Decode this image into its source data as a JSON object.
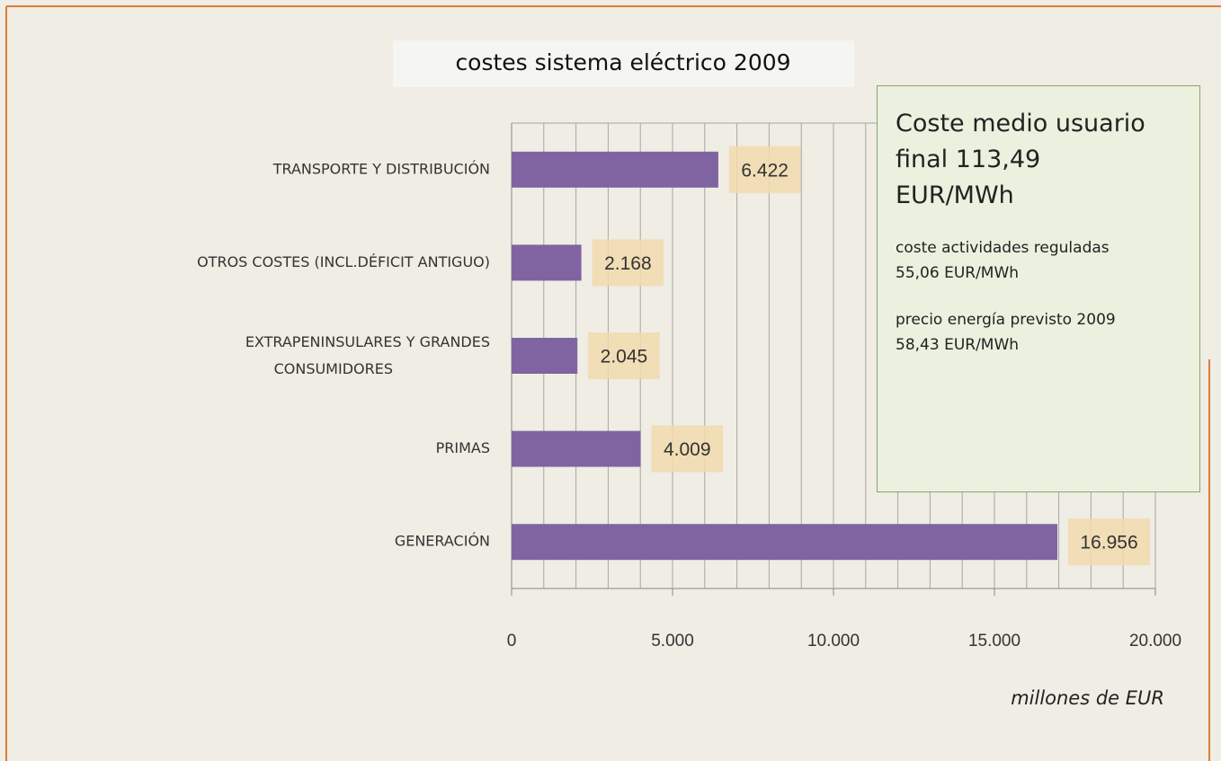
{
  "chart_data": {
    "type": "bar",
    "orientation": "horizontal",
    "title": "costes sistema eléctrico 2009",
    "x_label": "millones de EUR",
    "categories": [
      "TRANSPORTE Y DISTRIBUCIÓN",
      "OTROS COSTES (INCL.DÉFICIT  ANTIGUO)",
      "EXTRAPENINSULARES  Y GRANDES CONSUMIDORES",
      "PRIMAS",
      "GENERACIÓN"
    ],
    "values": [
      6422,
      2168,
      2045,
      4009,
      16956
    ],
    "value_labels": [
      "6.422",
      "2.168",
      "2.045",
      "4.009",
      "16.956"
    ],
    "color": "#8064a2",
    "xlim": [
      0,
      20000
    ],
    "xticks": [
      0,
      {
        "value": 5000,
        "label": "5.000"
      },
      {
        "value": 10000,
        "label": "10.000"
      },
      {
        "value": 15000,
        "label": "15.000"
      },
      {
        "value": 20000,
        "label": "20.000"
      }
    ],
    "minor_grid": [
      1000,
      2000,
      3000,
      4000,
      6000,
      7000,
      8000,
      9000,
      11000,
      12000,
      13000,
      14000,
      16000,
      17000,
      18000,
      19000
    ],
    "grid": true,
    "annotation": {
      "heading": "Coste medio usuario final",
      "heading_value": "113,49 EUR/MWh",
      "notes": [
        "coste actividades reguladas 55,06 EUR/MWh",
        "precio energía previsto 2009 58,43 EUR/MWh"
      ]
    }
  }
}
